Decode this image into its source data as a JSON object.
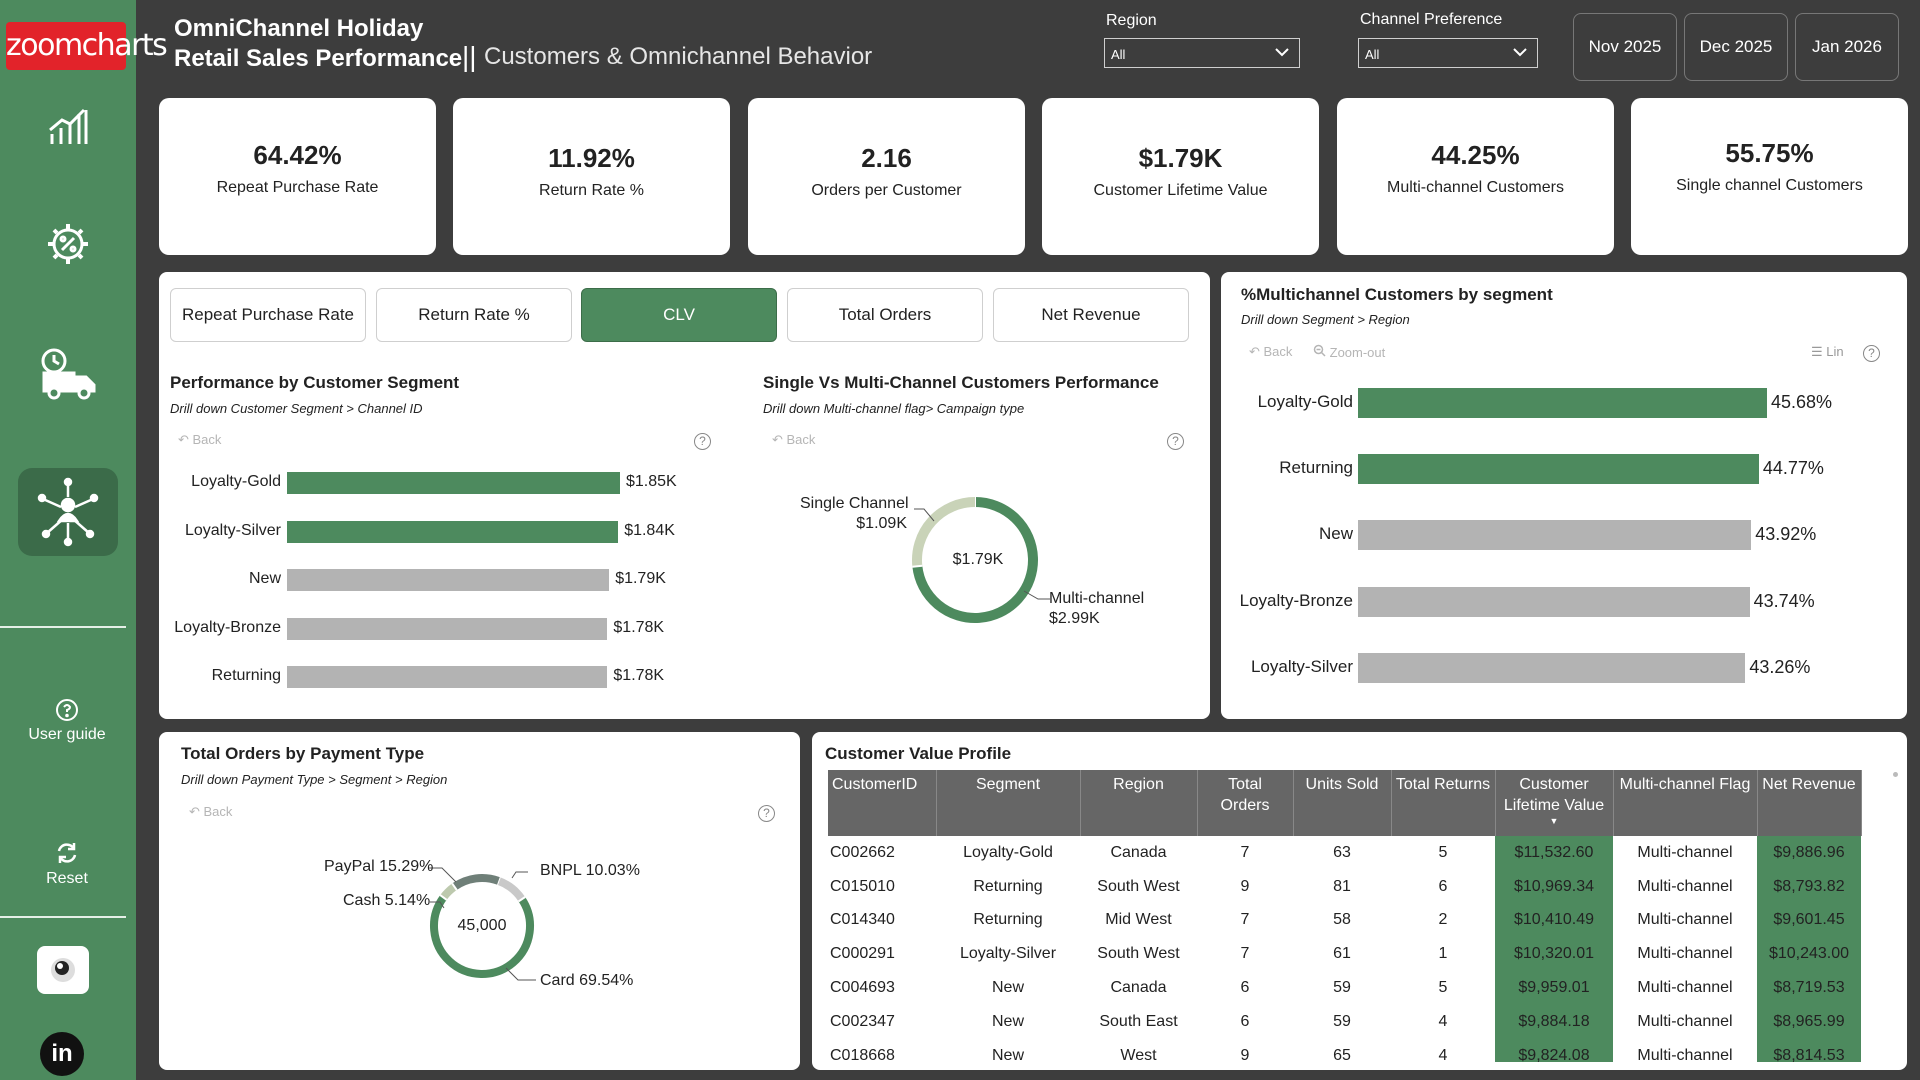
{
  "brand": {
    "logo_text": "zoomcharts"
  },
  "sidebar": {
    "nav": [
      {
        "icon": "bar-chart-icon"
      },
      {
        "icon": "percent-gear-icon"
      },
      {
        "icon": "delivery-truck-icon"
      },
      {
        "icon": "network-person-icon"
      }
    ],
    "user_guide": "User guide",
    "reset": "Reset"
  },
  "header": {
    "title_line1": "OmniChannel Holiday",
    "title_line2": "Retail Sales Performance",
    "separator": "||",
    "subtitle": "Customers & Omnichannel Behavior"
  },
  "filters": {
    "region_label": "Region",
    "region_value": "All",
    "channel_label": "Channel Preference",
    "channel_value": "All"
  },
  "months": [
    "Nov 2025",
    "Dec 2025",
    "Jan 2026"
  ],
  "kpis": [
    {
      "value": "64.42%",
      "label": "Repeat Purchase Rate"
    },
    {
      "value": "11.92%",
      "label": "Return Rate %"
    },
    {
      "value": "2.16",
      "label": "Orders per Customer"
    },
    {
      "value": "$1.79K",
      "label": "Customer Lifetime Value"
    },
    {
      "value": "44.25%",
      "label": "Multi-channel Customers"
    },
    {
      "value": "55.75%",
      "label": "Single channel Customers"
    }
  ],
  "metric_tabs": [
    "Repeat Purchase Rate",
    "Return Rate %",
    "CLV",
    "Total Orders",
    "Net Revenue"
  ],
  "metric_tabs_active": "CLV",
  "perf_segment": {
    "title": "Performance by Customer Segment",
    "drill": "Drill down Customer Segment > Channel ID",
    "back": "Back",
    "chart_data": {
      "type": "bar",
      "categories": [
        "Loyalty-Gold",
        "Loyalty-Silver",
        "New",
        "Loyalty-Bronze",
        "Returning"
      ],
      "values": [
        1.85,
        1.84,
        1.79,
        1.78,
        1.78
      ],
      "value_labels": [
        "$1.85K",
        "$1.84K",
        "$1.79K",
        "$1.78K",
        "$1.78K"
      ],
      "colors": [
        "#4d8a5e",
        "#4d8a5e",
        "#b3b3b3",
        "#b3b3b3",
        "#b3b3b3"
      ]
    }
  },
  "single_multi": {
    "title": "Single Vs Multi-Channel Customers Performance",
    "drill": "Drill down Multi-channel flag> Campaign type",
    "back": "Back",
    "center": "$1.79K",
    "chart_data": {
      "type": "pie",
      "categories": [
        "Single Channel",
        "Multi-channel"
      ],
      "values": [
        1.09,
        2.99
      ],
      "value_labels": [
        "$1.09K",
        "$2.99K"
      ],
      "colors": [
        "#c9d3b8",
        "#4d8a5e"
      ]
    }
  },
  "multichannel_segment": {
    "title": "%Multichannel Customers by segment",
    "drill": "Drill down Segment > Region",
    "back": "Back",
    "zoom_out": "Zoom-out",
    "lin": "Lin",
    "chart_data": {
      "type": "bar",
      "categories": [
        "Loyalty-Gold",
        "Returning",
        "New",
        "Loyalty-Bronze",
        "Loyalty-Silver"
      ],
      "values": [
        45.68,
        44.77,
        43.92,
        43.74,
        43.26
      ],
      "value_labels": [
        "45.68%",
        "44.77%",
        "43.92%",
        "43.74%",
        "43.26%"
      ],
      "colors": [
        "#4d8a5e",
        "#4d8a5e",
        "#b3b3b3",
        "#b3b3b3",
        "#b3b3b3"
      ]
    }
  },
  "payment": {
    "title": "Total Orders by Payment Type",
    "drill": "Drill down Payment Type > Segment > Region",
    "back": "Back",
    "center": "45,000",
    "chart_data": {
      "type": "pie",
      "categories": [
        "Card",
        "PayPal",
        "BNPL",
        "Cash"
      ],
      "values": [
        69.54,
        15.29,
        10.03,
        5.14
      ],
      "labels": [
        "Card 69.54%",
        "PayPal 15.29%",
        "BNPL 10.03%",
        "Cash 5.14%"
      ],
      "colors": [
        "#4d8a5e",
        "#6f7f78",
        "#c9c9c9",
        "#bdc9ae"
      ]
    }
  },
  "cvp": {
    "title": "Customer Value Profile",
    "columns": [
      "CustomerID",
      "Segment",
      "Region",
      "Total Orders",
      "Units Sold",
      "Total Returns",
      "Customer Lifetime Value",
      "Multi-channel Flag",
      "Net Revenue"
    ],
    "rows": [
      [
        "C002662",
        "Loyalty-Gold",
        "Canada",
        "7",
        "63",
        "5",
        "$11,532.60",
        "Multi-channel",
        "$9,886.96"
      ],
      [
        "C015010",
        "Returning",
        "South West",
        "9",
        "81",
        "6",
        "$10,969.34",
        "Multi-channel",
        "$8,793.82"
      ],
      [
        "C014340",
        "Returning",
        "Mid West",
        "7",
        "58",
        "2",
        "$10,410.49",
        "Multi-channel",
        "$9,601.45"
      ],
      [
        "C000291",
        "Loyalty-Silver",
        "South West",
        "7",
        "61",
        "1",
        "$10,320.01",
        "Multi-channel",
        "$10,243.00"
      ],
      [
        "C004693",
        "New",
        "Canada",
        "6",
        "59",
        "5",
        "$9,959.01",
        "Multi-channel",
        "$8,719.53"
      ],
      [
        "C002347",
        "New",
        "South East",
        "6",
        "59",
        "4",
        "$9,884.18",
        "Multi-channel",
        "$8,965.99"
      ],
      [
        "C018668",
        "New",
        "West",
        "9",
        "65",
        "4",
        "$9,824.08",
        "Multi-channel",
        "$8,814.53"
      ]
    ]
  }
}
